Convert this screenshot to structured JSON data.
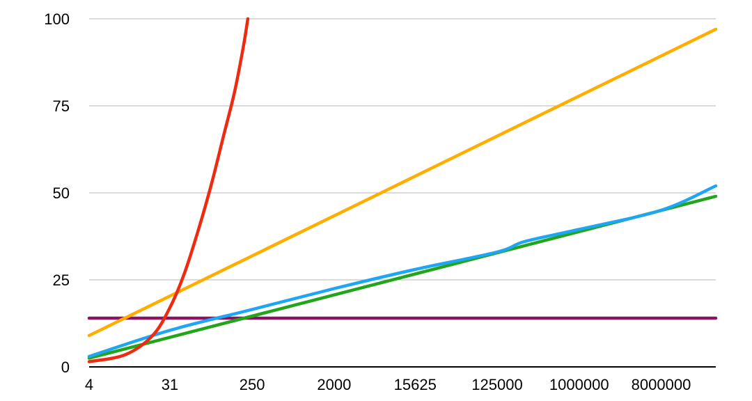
{
  "chart_data": {
    "type": "line",
    "title": "",
    "xlabel": "",
    "ylabel": "",
    "x_scale": "log",
    "x_ticks": [
      "4",
      "31",
      "250",
      "2000",
      "15625",
      "125000",
      "1000000",
      "8000000"
    ],
    "x_range": [
      4,
      32000000
    ],
    "ylim": [
      0,
      100
    ],
    "y_ticks": [
      "0",
      "25",
      "50",
      "75",
      "100"
    ],
    "grid": "horizontal",
    "legend": "none",
    "series": [
      {
        "color": "#8b1460",
        "x": [
          4,
          32000000
        ],
        "y": [
          14,
          14
        ]
      },
      {
        "color": "#ffae00",
        "x": [
          4,
          32000000
        ],
        "y": [
          9,
          97
        ]
      },
      {
        "color": "#21a51b",
        "x": [
          4,
          32000000
        ],
        "y": [
          2.5,
          49
        ]
      },
      {
        "color": "#1ea6f5",
        "x": [
          4,
          31,
          250,
          2000,
          15625,
          125000,
          250000,
          1000000,
          8000000,
          32000000
        ],
        "y": [
          3,
          10.5,
          16.5,
          22.5,
          28,
          33,
          36,
          39.5,
          45,
          52
        ]
      },
      {
        "color": "#ee2a10",
        "x": [
          4,
          10,
          20,
          31,
          45,
          65,
          90,
          120,
          160,
          200,
          224
        ],
        "y": [
          1.5,
          3.5,
          9,
          17,
          27,
          40,
          53,
          66,
          79,
          92,
          100
        ]
      }
    ]
  }
}
